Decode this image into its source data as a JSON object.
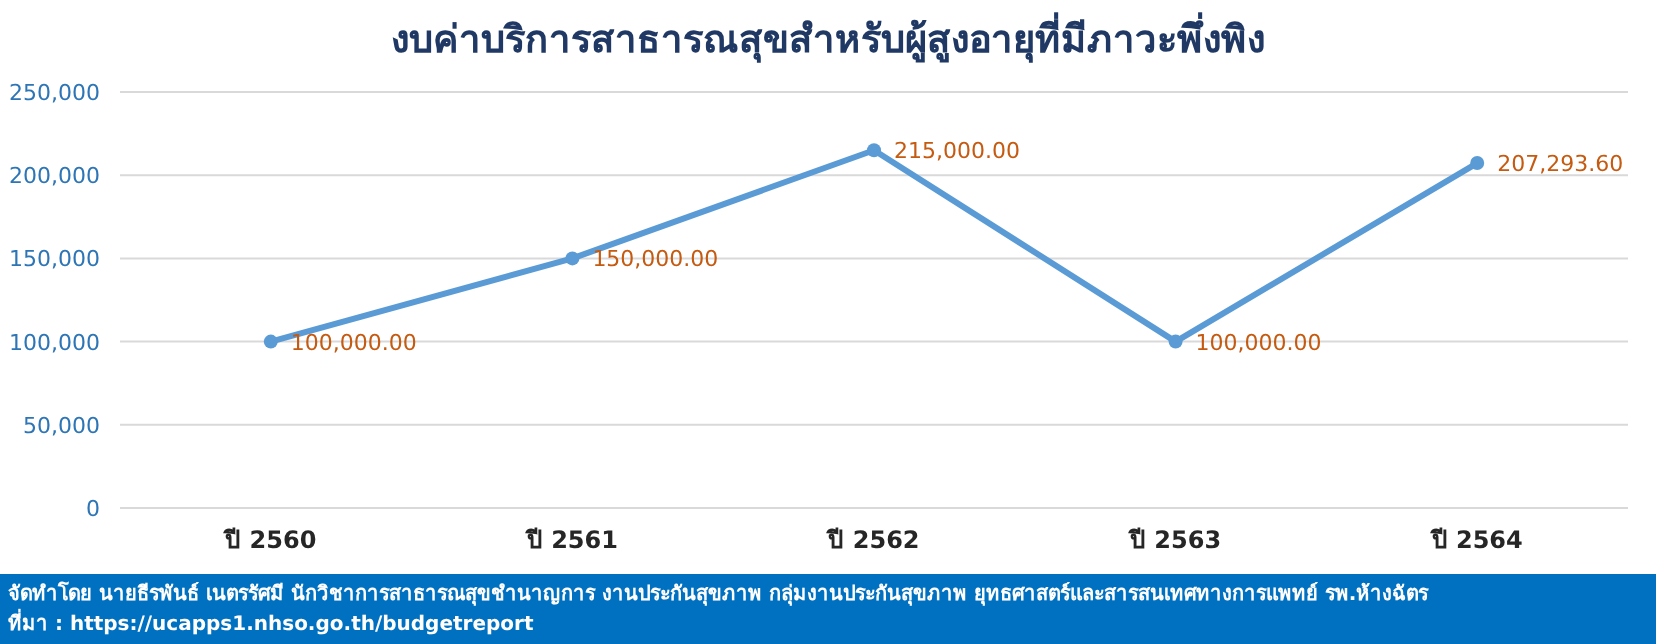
{
  "chart_data": {
    "type": "line",
    "title": "งบค่าบริการสาธารณสุขสำหรับผู้สูงอายุที่มีภาวะพึ่งพิง",
    "categories": [
      "ปี 2560",
      "ปี 2561",
      "ปี 2562",
      "ปี 2563",
      "ปี 2564"
    ],
    "series": [
      {
        "color": "#5b9bd5",
        "values": [
          100000,
          150000,
          215000,
          100000,
          207293.6
        ],
        "value_labels": [
          "100,000.00",
          "150,000.00",
          "215,000.00",
          "100,000.00",
          "207,293.60"
        ]
      }
    ],
    "ylim": [
      0,
      250000
    ],
    "yticks": [
      {
        "value": 0,
        "label": "0"
      },
      {
        "value": 50000,
        "label": "50,000"
      },
      {
        "value": 100000,
        "label": "100,000"
      },
      {
        "value": 150000,
        "label": "150,000"
      },
      {
        "value": 200000,
        "label": "200,000"
      },
      {
        "value": 250000,
        "label": "250,000"
      }
    ],
    "grid": "y",
    "marker": "circle",
    "line_style": "solid",
    "annotations": [
      "จัดทำโดย นายธีรพันธ์ เนตรรัศมี นักวิชาการสาธารณสุขชำนาญการ งานประกันสุขภาพ กลุ่มงานประกันสุขภาพ ยุทธศาสตร์และสารสนเทศทางการแพทย์ รพ.ห้างฉัตร",
      "ที่มา : https://ucapps1.nhso.go.th/budgetreport"
    ]
  }
}
